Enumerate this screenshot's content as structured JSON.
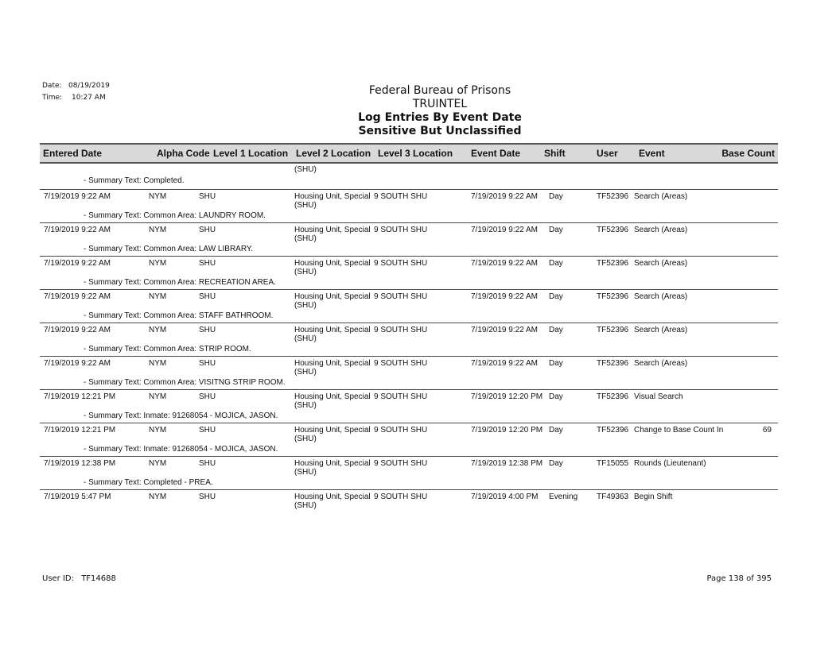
{
  "meta": {
    "date_label": "Date:",
    "date": "08/19/2019",
    "time_label": "Time:",
    "time": "10:27 AM"
  },
  "titles": [
    "Federal Bureau of Prisons",
    "TRUINTEL",
    "Log Entries By Event Date",
    "Sensitive But Unclassified"
  ],
  "columns": [
    "Entered Date",
    "Alpha Code",
    "Level 1 Location",
    "Level 2 Location",
    "Level 3 Location",
    "Event Date",
    "Shift",
    "User",
    "Event",
    "Base Count"
  ],
  "carryover": {
    "level2": "(SHU)",
    "summary": "- Summary Text: Completed."
  },
  "rows": [
    {
      "entered": "7/19/2019 9:22 AM",
      "alpha": "NYM",
      "l1": "SHU",
      "l2": "Housing Unit, Special (SHU)",
      "l3": "9 SOUTH SHU",
      "event_date": "7/19/2019 9:22 AM",
      "shift": "Day",
      "user": "TF52396",
      "event": "Search (Areas)",
      "base": "",
      "summary": "- Summary Text: Common Area: LAUNDRY ROOM."
    },
    {
      "entered": "7/19/2019 9:22 AM",
      "alpha": "NYM",
      "l1": "SHU",
      "l2": "Housing Unit, Special (SHU)",
      "l3": "9 SOUTH SHU",
      "event_date": "7/19/2019 9:22 AM",
      "shift": "Day",
      "user": "TF52396",
      "event": "Search (Areas)",
      "base": "",
      "summary": "- Summary Text: Common Area: LAW LIBRARY."
    },
    {
      "entered": "7/19/2019 9:22 AM",
      "alpha": "NYM",
      "l1": "SHU",
      "l2": "Housing Unit, Special (SHU)",
      "l3": "9 SOUTH SHU",
      "event_date": "7/19/2019 9:22 AM",
      "shift": "Day",
      "user": "TF52396",
      "event": "Search (Areas)",
      "base": "",
      "summary": "- Summary Text: Common Area: RECREATION AREA."
    },
    {
      "entered": "7/19/2019 9:22 AM",
      "alpha": "NYM",
      "l1": "SHU",
      "l2": "Housing Unit, Special (SHU)",
      "l3": "9 SOUTH SHU",
      "event_date": "7/19/2019 9:22 AM",
      "shift": "Day",
      "user": "TF52396",
      "event": "Search (Areas)",
      "base": "",
      "summary": "- Summary Text: Common Area: STAFF BATHROOM."
    },
    {
      "entered": "7/19/2019 9:22 AM",
      "alpha": "NYM",
      "l1": "SHU",
      "l2": "Housing Unit, Special (SHU)",
      "l3": "9 SOUTH SHU",
      "event_date": "7/19/2019 9:22 AM",
      "shift": "Day",
      "user": "TF52396",
      "event": "Search (Areas)",
      "base": "",
      "summary": "- Summary Text: Common Area: STRIP ROOM."
    },
    {
      "entered": "7/19/2019 9:22 AM",
      "alpha": "NYM",
      "l1": "SHU",
      "l2": "Housing Unit, Special (SHU)",
      "l3": "9 SOUTH SHU",
      "event_date": "7/19/2019 9:22 AM",
      "shift": "Day",
      "user": "TF52396",
      "event": "Search (Areas)",
      "base": "",
      "summary": "- Summary Text: Common Area: VISITNG STRIP ROOM."
    },
    {
      "entered": "7/19/2019 12:21 PM",
      "alpha": "NYM",
      "l1": "SHU",
      "l2": "Housing Unit, Special (SHU)",
      "l3": "9 SOUTH SHU",
      "event_date": "7/19/2019 12:20 PM",
      "shift": "Day",
      "user": "TF52396",
      "event": "Visual Search",
      "base": "",
      "summary": "- Summary Text: Inmate: 91268054 - MOJICA, JASON."
    },
    {
      "entered": "7/19/2019 12:21 PM",
      "alpha": "NYM",
      "l1": "SHU",
      "l2": "Housing Unit, Special (SHU)",
      "l3": "9 SOUTH SHU",
      "event_date": "7/19/2019 12:20 PM",
      "shift": "Day",
      "user": "TF52396",
      "event": "Change to Base Count In",
      "base": "69",
      "summary": "- Summary Text: Inmate: 91268054 - MOJICA, JASON."
    },
    {
      "entered": "7/19/2019 12:38 PM",
      "alpha": "NYM",
      "l1": "SHU",
      "l2": "Housing Unit, Special (SHU)",
      "l3": "9 SOUTH SHU",
      "event_date": "7/19/2019 12:38 PM",
      "shift": "Day",
      "user": "TF15055",
      "event": "Rounds (Lieutenant)",
      "base": "",
      "summary": "- Summary Text: Completed - PREA."
    },
    {
      "entered": "7/19/2019 5:47 PM",
      "alpha": "NYM",
      "l1": "SHU",
      "l2": "Housing Unit, Special (SHU)",
      "l3": "9 SOUTH SHU",
      "event_date": "7/19/2019 4:00 PM",
      "shift": "Evening",
      "user": "TF49363",
      "event": "Begin Shift",
      "base": "",
      "summary": ""
    }
  ],
  "footer": {
    "user_label": "User ID:",
    "user_id": "TF14688",
    "page": "Page 138 of 395"
  }
}
